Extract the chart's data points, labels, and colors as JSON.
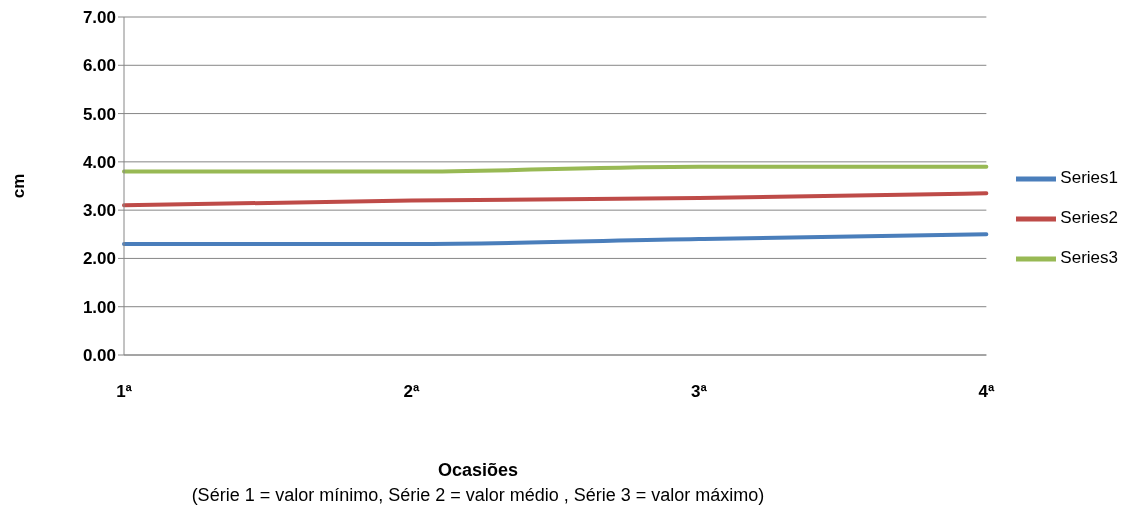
{
  "chart_data": {
    "type": "line",
    "xlabel": "Ocasiões",
    "ylabel": "cm",
    "annotations": [
      "(Série 1 = valor mínimo, Série 2 = valor médio , Série 3 = valor máximo)"
    ],
    "categories": [
      "1ª",
      "2ª",
      "3ª",
      "4ª"
    ],
    "series": [
      {
        "name": "Series1",
        "color": "#4a7ebb",
        "values": [
          2.3,
          2.3,
          2.4,
          2.5
        ]
      },
      {
        "name": "Series2",
        "color": "#be4b48",
        "values": [
          3.1,
          3.2,
          3.25,
          3.35
        ]
      },
      {
        "name": "Series3",
        "color": "#98b954",
        "values": [
          3.8,
          3.8,
          3.9,
          3.9
        ]
      }
    ],
    "ylim": [
      0,
      7
    ],
    "yticks": [
      {
        "value": 0,
        "label": "0.00"
      },
      {
        "value": 1,
        "label": "1.00"
      },
      {
        "value": 2,
        "label": "2.00"
      },
      {
        "value": 3,
        "label": "3.00"
      },
      {
        "value": 4,
        "label": "4.00"
      },
      {
        "value": 5,
        "label": "5.00"
      },
      {
        "value": 6,
        "label": "6.00"
      },
      {
        "value": 7,
        "label": "7.00"
      }
    ],
    "grid": "y",
    "legend": "right",
    "marker": "none",
    "line_style": "solid"
  }
}
